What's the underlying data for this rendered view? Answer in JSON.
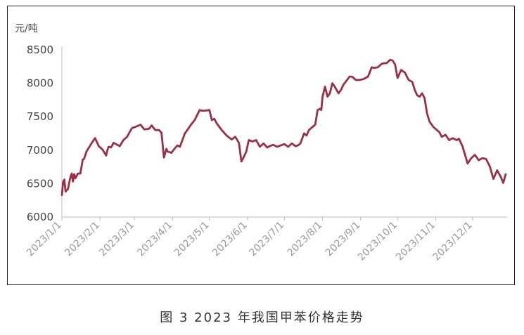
{
  "caption": "图 3  2023 年我国甲苯价格走势",
  "chart_data": {
    "type": "line",
    "title": "",
    "ylabel": "元/吨",
    "ylim": [
      6000,
      8500
    ],
    "yticks": [
      6000,
      6500,
      7000,
      7500,
      8000,
      8500
    ],
    "xlim": [
      "2023-01-01",
      "2023-12-28"
    ],
    "categories": [
      "2023/1/1",
      "2023/2/1",
      "2023/3/1",
      "2023/4/1",
      "2023/5/1",
      "2023/6/1",
      "2023/7/1",
      "2023/8/1",
      "2023/9/1",
      "2023/10/1",
      "2023/11/1",
      "2023/12/1"
    ],
    "tick_dates": [
      "2023-01-01",
      "2023-02-01",
      "2023-03-01",
      "2023-04-01",
      "2023-05-01",
      "2023-06-01",
      "2023-07-01",
      "2023-08-01",
      "2023-09-01",
      "2023-10-01",
      "2023-11-01",
      "2023-12-01"
    ],
    "grid": false,
    "color": "#9b2f45",
    "series": [
      {
        "x": [
          "2023-01-01",
          "2023-01-02",
          "2023-01-03",
          "2023-01-04",
          "2023-01-06",
          "2023-01-07",
          "2023-01-08",
          "2023-01-09",
          "2023-01-10",
          "2023-01-11",
          "2023-01-12",
          "2023-01-14",
          "2023-01-16",
          "2023-01-18",
          "2023-01-19",
          "2023-01-21",
          "2023-01-25",
          "2023-01-28",
          "2023-01-31",
          "2023-02-03",
          "2023-02-06",
          "2023-02-07",
          "2023-02-08",
          "2023-02-10",
          "2023-02-12",
          "2023-02-15",
          "2023-02-17",
          "2023-02-20",
          "2023-02-23",
          "2023-02-27",
          "2023-03-02",
          "2023-03-06",
          "2023-03-09",
          "2023-03-13",
          "2023-03-15",
          "2023-03-18",
          "2023-03-21",
          "2023-03-23",
          "2023-03-25",
          "2023-03-27",
          "2023-03-28",
          "2023-03-31",
          "2023-04-03",
          "2023-04-05",
          "2023-04-07",
          "2023-04-09",
          "2023-04-11",
          "2023-04-13",
          "2023-04-16",
          "2023-04-19",
          "2023-04-23",
          "2023-04-25",
          "2023-04-27",
          "2023-05-01",
          "2023-05-03",
          "2023-05-05",
          "2023-05-07",
          "2023-05-09",
          "2023-05-11",
          "2023-05-15",
          "2023-05-19",
          "2023-05-22",
          "2023-05-25",
          "2023-05-27",
          "2023-05-29",
          "2023-05-31",
          "2023-06-02",
          "2023-06-05",
          "2023-06-08",
          "2023-06-11",
          "2023-06-14",
          "2023-06-17",
          "2023-06-19",
          "2023-06-22",
          "2023-06-25",
          "2023-06-28",
          "2023-07-01",
          "2023-07-04",
          "2023-07-07",
          "2023-07-10",
          "2023-07-12",
          "2023-07-14",
          "2023-07-17",
          "2023-07-19",
          "2023-07-21",
          "2023-07-24",
          "2023-07-26",
          "2023-07-28",
          "2023-07-30",
          "2023-07-31",
          "2023-08-01",
          "2023-08-03",
          "2023-08-05",
          "2023-08-07",
          "2023-08-09",
          "2023-08-11",
          "2023-08-14",
          "2023-08-16",
          "2023-08-18",
          "2023-08-21",
          "2023-08-23",
          "2023-08-25",
          "2023-08-28",
          "2023-08-31",
          "2023-09-03",
          "2023-09-07",
          "2023-09-10",
          "2023-09-12",
          "2023-09-15",
          "2023-09-18",
          "2023-09-20",
          "2023-09-22",
          "2023-09-25",
          "2023-09-27",
          "2023-09-29",
          "2023-10-01",
          "2023-10-04",
          "2023-10-07",
          "2023-10-10",
          "2023-10-13",
          "2023-10-15",
          "2023-10-17",
          "2023-10-19",
          "2023-10-21",
          "2023-10-23",
          "2023-10-25",
          "2023-10-27",
          "2023-10-30",
          "2023-11-02",
          "2023-11-04",
          "2023-11-06",
          "2023-11-09",
          "2023-11-12",
          "2023-11-15",
          "2023-11-18",
          "2023-11-20",
          "2023-11-23",
          "2023-11-27",
          "2023-11-30",
          "2023-12-03",
          "2023-12-06",
          "2023-12-09",
          "2023-12-12",
          "2023-12-15",
          "2023-12-18",
          "2023-12-21",
          "2023-12-24",
          "2023-12-26",
          "2023-12-28"
        ],
        "y": [
          6330,
          6520,
          6560,
          6380,
          6420,
          6520,
          6600,
          6650,
          6530,
          6640,
          6580,
          6650,
          6650,
          6860,
          6870,
          6980,
          7100,
          7180,
          7060,
          7010,
          6920,
          7000,
          7050,
          7040,
          7110,
          7080,
          7060,
          7150,
          7200,
          7330,
          7350,
          7380,
          7310,
          7320,
          7370,
          7300,
          7300,
          7260,
          6890,
          7020,
          6980,
          6960,
          7030,
          7070,
          7050,
          7150,
          7250,
          7300,
          7380,
          7450,
          7600,
          7590,
          7590,
          7600,
          7450,
          7470,
          7400,
          7350,
          7300,
          7220,
          7160,
          7200,
          7110,
          6830,
          6900,
          6980,
          7150,
          7130,
          7150,
          7050,
          7100,
          7040,
          7060,
          7080,
          7050,
          7070,
          7090,
          7050,
          7100,
          7060,
          7070,
          7100,
          7250,
          7220,
          7300,
          7350,
          7380,
          7600,
          7620,
          7600,
          7800,
          7950,
          7800,
          7850,
          8000,
          7950,
          7850,
          7900,
          7980,
          8050,
          8100,
          8100,
          8050,
          8050,
          8060,
          8100,
          8240,
          8230,
          8240,
          8290,
          8300,
          8300,
          8350,
          8340,
          8280,
          8080,
          8200,
          8160,
          8050,
          8020,
          7900,
          7820,
          7800,
          7850,
          7780,
          7550,
          7430,
          7350,
          7300,
          7270,
          7200,
          7230,
          7150,
          7180,
          7150,
          7170,
          7050,
          6800,
          6880,
          6930,
          6850,
          6880,
          6870,
          6760,
          6570,
          6700,
          6600,
          6510,
          6640
        ]
      }
    ]
  }
}
